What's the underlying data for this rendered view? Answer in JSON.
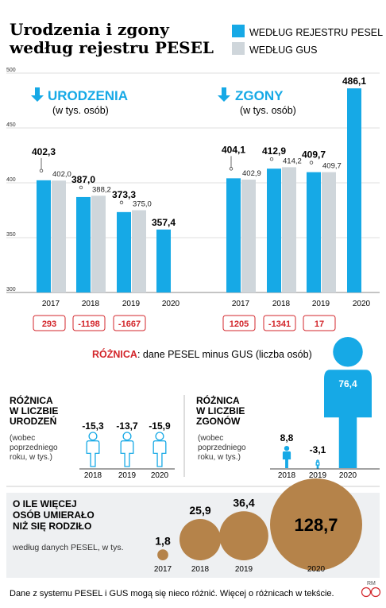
{
  "header": {
    "title_line1": "Urodzenia i zgony",
    "title_line2": "według rejestru PESEL"
  },
  "legend": {
    "pesel": "WEDŁUG REJESTRU PESEL",
    "gus": "WEDŁUG GUS"
  },
  "colors": {
    "pesel": "#16a9e6",
    "gus": "#cfd6db",
    "accent": "#16a9e6",
    "diff_red": "#d3262b",
    "bubble": "#b5834a"
  },
  "main_chart_sections": {
    "births_title": "URODZENIA",
    "births_sub": "(w tys. osób)",
    "deaths_title": "ZGONY",
    "deaths_sub": "(w tys. osób)",
    "arrow_icon": "down-arrow-icon"
  },
  "diff_note": {
    "label": "RÓŻNICA",
    "text": ": dane PESEL minus GUS (liczba osób)"
  },
  "chart_data": [
    {
      "type": "bar",
      "ylim": [
        300,
        500
      ],
      "yticks": [
        "300",
        "350",
        "400",
        "450",
        "500"
      ],
      "groups": [
        {
          "categories": [
            "2017",
            "2018",
            "2019",
            "2020"
          ],
          "series": [
            {
              "name": "WEDŁUG REJESTRU PESEL",
              "values": [
                402.3,
                387.0,
                373.3,
                357.4
              ],
              "labels": [
                "402,3",
                "387,0",
                "373,3",
                "357,4"
              ]
            },
            {
              "name": "WEDŁUG GUS",
              "values": [
                402.0,
                388.2,
                375.0,
                null
              ],
              "labels": [
                "402,0",
                "388,2",
                "375,0",
                ""
              ]
            }
          ],
          "diffs": [
            "293",
            "-1198",
            "-1667"
          ]
        },
        {
          "categories": [
            "2017",
            "2018",
            "2019",
            "2020"
          ],
          "series": [
            {
              "name": "WEDŁUG REJESTRU PESEL",
              "values": [
                404.1,
                412.9,
                409.7,
                486.1
              ],
              "labels": [
                "404,1",
                "412,9",
                "409,7",
                "486,1"
              ]
            },
            {
              "name": "WEDŁUG GUS",
              "values": [
                402.9,
                414.2,
                409.7,
                null
              ],
              "labels": [
                "402,9",
                "414,2",
                "409,7",
                ""
              ]
            }
          ],
          "diffs": [
            "1205",
            "-1341",
            "17"
          ]
        }
      ]
    },
    {
      "type": "pictogram",
      "title": [
        "RÓŻNICA",
        "W LICZBIE",
        "URODZEŃ"
      ],
      "note": [
        "(wobec",
        "poprzedniego",
        "roku, w tys.)"
      ],
      "categories": [
        "2018",
        "2019",
        "2020"
      ],
      "values": [
        -15.3,
        -13.7,
        -15.9
      ],
      "labels": [
        "-15,3",
        "-13,7",
        "-15,9"
      ]
    },
    {
      "type": "pictogram",
      "title": [
        "RÓŻNICA",
        "W LICZBIE",
        "ZGONÓW"
      ],
      "note": [
        "(wobec",
        "poprzedniego",
        "roku, w tys.)"
      ],
      "categories": [
        "2018",
        "2019",
        "2020"
      ],
      "values": [
        8.8,
        -3.1,
        76.4
      ],
      "labels": [
        "8,8",
        "-3,1",
        "76,4"
      ]
    },
    {
      "type": "bubble",
      "title": [
        "O ILE WIĘCEJ",
        "OSÓB UMIERAŁO",
        "NIŻ SIĘ RODZIŁO"
      ],
      "note": "według danych PESEL, w tys.",
      "categories": [
        "2017",
        "2018",
        "2019",
        "2020"
      ],
      "values": [
        1.8,
        25.9,
        36.4,
        128.7
      ],
      "labels": [
        "1,8",
        "25,9",
        "36,4",
        "128,7"
      ]
    }
  ],
  "footer": {
    "text": "Dane z systemu PESEL i GUS mogą się nieco różnić. Więcej o różnicach w tekście.",
    "author": "RM",
    "logo": "CP"
  }
}
